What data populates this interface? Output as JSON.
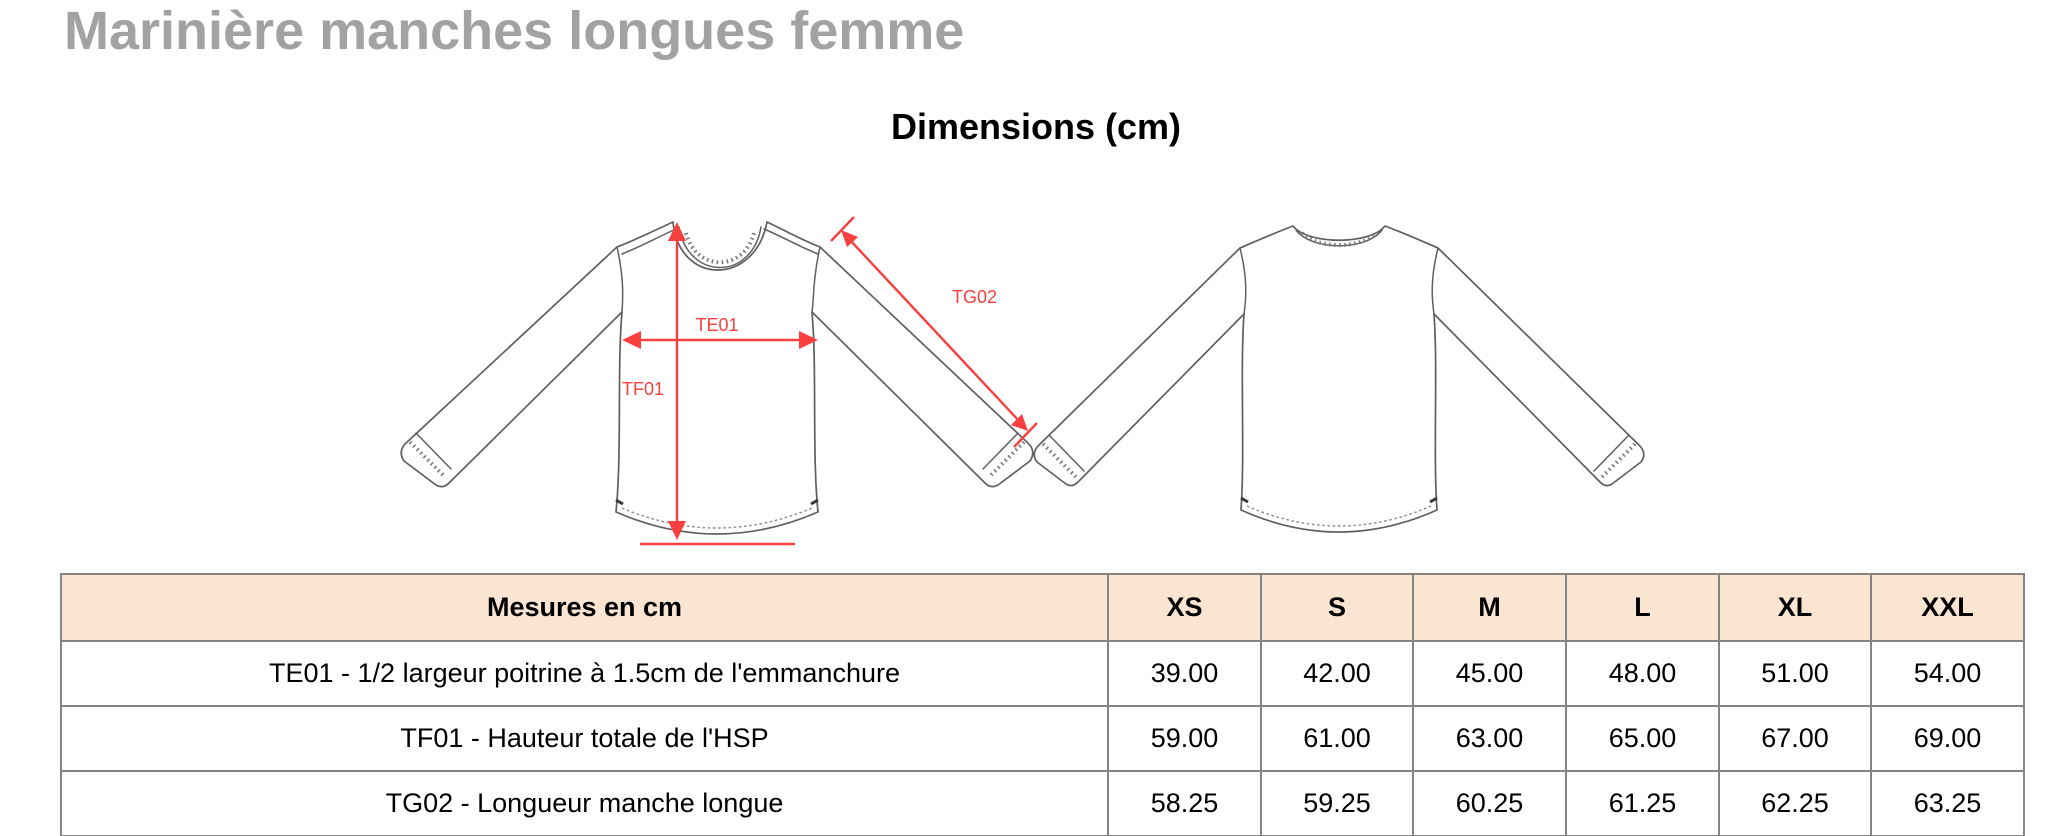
{
  "page": {
    "title": "Marinière manches longues femme",
    "section_title": "Dimensions (cm)"
  },
  "diagram": {
    "annotation_color": "#f94040",
    "outline_color": "#5f5f5f",
    "views": [
      "front",
      "back"
    ],
    "measures": {
      "te01": "TE01",
      "tf01": "TF01",
      "tg02": "TG02"
    }
  },
  "table": {
    "header_bg": "#fae5d2",
    "border_color": "#848484",
    "header": [
      "Mesures en cm",
      "XS",
      "S",
      "M",
      "L",
      "XL",
      "XXL"
    ],
    "rows": [
      {
        "label": "TE01 - 1/2 largeur poitrine à 1.5cm de l'emmanchure",
        "values": [
          "39.00",
          "42.00",
          "45.00",
          "48.00",
          "51.00",
          "54.00"
        ]
      },
      {
        "label": "TF01 - Hauteur totale de l'HSP",
        "values": [
          "59.00",
          "61.00",
          "63.00",
          "65.00",
          "67.00",
          "69.00"
        ]
      },
      {
        "label": "TG02 - Longueur manche longue",
        "values": [
          "58.25",
          "59.25",
          "60.25",
          "61.25",
          "62.25",
          "63.25"
        ]
      }
    ]
  }
}
